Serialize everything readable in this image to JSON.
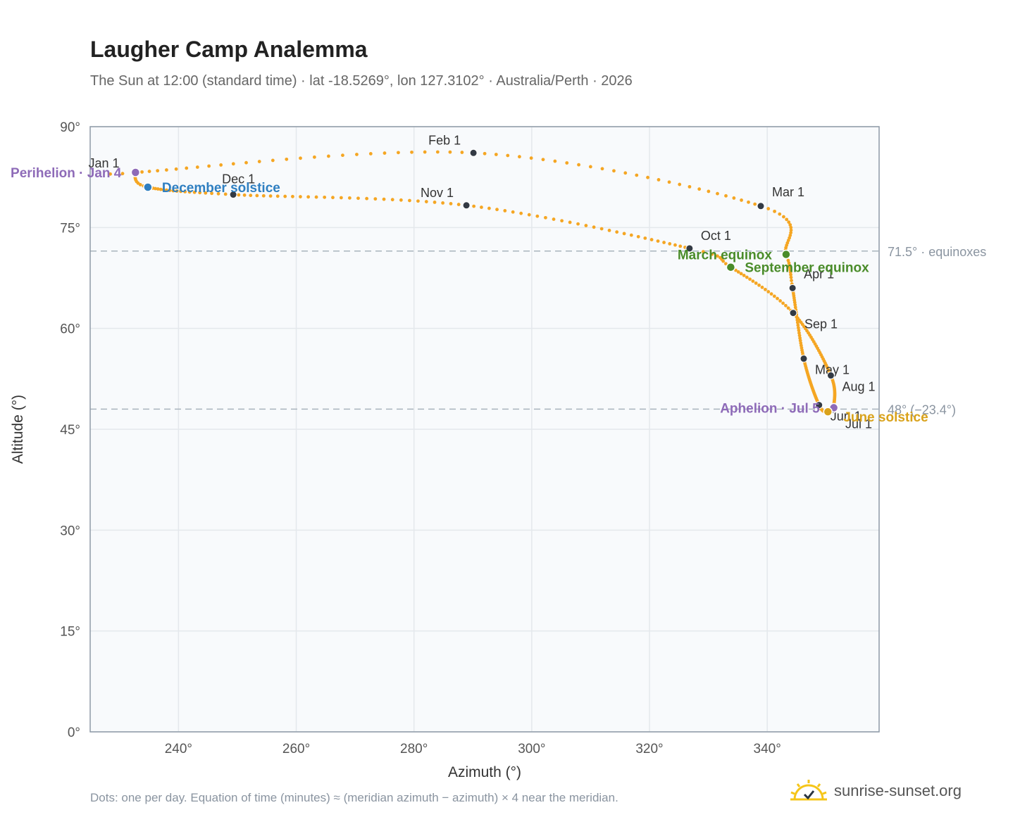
{
  "header": {
    "title": "Laugher Camp Analemma",
    "subtitle": "The Sun at 12:00 (standard time) · lat -18.5269°, lon 127.3102° · Australia/Perth · 2026"
  },
  "footer": {
    "note": "Dots: one per day. Equation of time (minutes) ≈ (meridian azimuth − azimuth) × 4 near the meridian.",
    "brand": "sunrise-sunset.org"
  },
  "colors": {
    "path": "#f5a623",
    "month_dot": "#333a44",
    "solstice_december": "#2f7fc1",
    "solstice_june": "#d9a21b",
    "equinox": "#4a8c2a",
    "apsis": "#8e6bb8",
    "reference_line": "#a9b4bd",
    "plot_bg": "#f8fafc",
    "grid": "#e4e8ec",
    "frame": "#8d99a6"
  },
  "chart_data": {
    "type": "scatter",
    "xlabel": "Azimuth (°)",
    "ylabel": "Altitude (°)",
    "xlim": [
      225,
      359
    ],
    "ylim": [
      0,
      90
    ],
    "xticks": [
      240,
      260,
      280,
      300,
      320,
      340
    ],
    "yticks": [
      0,
      15,
      30,
      45,
      60,
      75,
      90
    ],
    "xtick_labels": [
      "240°",
      "260°",
      "280°",
      "300°",
      "320°",
      "340°"
    ],
    "ytick_labels": [
      "0°",
      "15°",
      "30°",
      "45°",
      "60°",
      "75°",
      "90°"
    ],
    "grid": true,
    "marker_note": "one dot per day",
    "analemma_key_points": [
      {
        "day": 1,
        "az": 232.6,
        "alt": 83.1
      },
      {
        "day": 4,
        "az": 232.7,
        "alt": 83.2
      },
      {
        "day": 32,
        "az": 290.1,
        "alt": 86.1
      },
      {
        "day": 60,
        "az": 338.9,
        "alt": 78.2
      },
      {
        "day": 79,
        "az": 343.2,
        "alt": 71.0
      },
      {
        "day": 91,
        "az": 344.3,
        "alt": 66.0
      },
      {
        "day": 121,
        "az": 346.2,
        "alt": 55.5
      },
      {
        "day": 152,
        "az": 348.8,
        "alt": 48.6
      },
      {
        "day": 172,
        "az": 350.3,
        "alt": 47.6
      },
      {
        "day": 182,
        "az": 351.1,
        "alt": 47.9
      },
      {
        "day": 186,
        "az": 351.3,
        "alt": 48.2
      },
      {
        "day": 213,
        "az": 350.8,
        "alt": 53.0
      },
      {
        "day": 244,
        "az": 344.4,
        "alt": 62.3
      },
      {
        "day": 266,
        "az": 333.8,
        "alt": 69.1
      },
      {
        "day": 274,
        "az": 326.8,
        "alt": 71.9
      },
      {
        "day": 305,
        "az": 288.9,
        "alt": 78.3
      },
      {
        "day": 335,
        "az": 249.3,
        "alt": 79.9
      },
      {
        "day": 355,
        "az": 234.8,
        "alt": 81.0
      },
      {
        "day": 365,
        "az": 232.5,
        "alt": 83.0
      }
    ],
    "month_markers": [
      {
        "label": "Jan 1",
        "az": 232.6,
        "alt": 83.1
      },
      {
        "label": "Feb 1",
        "az": 290.1,
        "alt": 86.1
      },
      {
        "label": "Mar 1",
        "az": 338.9,
        "alt": 78.2
      },
      {
        "label": "Apr 1",
        "az": 344.3,
        "alt": 66.0
      },
      {
        "label": "May 1",
        "az": 346.2,
        "alt": 55.5
      },
      {
        "label": "Jun 1",
        "az": 348.8,
        "alt": 48.6
      },
      {
        "label": "Jul 1",
        "az": 351.1,
        "alt": 47.9
      },
      {
        "label": "Aug 1",
        "az": 350.8,
        "alt": 53.0
      },
      {
        "label": "Sep 1",
        "az": 344.4,
        "alt": 62.3
      },
      {
        "label": "Oct 1",
        "az": 326.8,
        "alt": 71.9
      },
      {
        "label": "Nov 1",
        "az": 288.9,
        "alt": 78.3
      },
      {
        "label": "Dec 1",
        "az": 249.3,
        "alt": 79.9
      }
    ],
    "events": [
      {
        "label": "Perihelion · Jan 4",
        "kind": "apsis",
        "az": 232.7,
        "alt": 83.2
      },
      {
        "label": "December solstice",
        "kind": "solstice_december",
        "az": 234.8,
        "alt": 81.0
      },
      {
        "label": "March equinox",
        "kind": "equinox",
        "az": 343.2,
        "alt": 71.0
      },
      {
        "label": "September equinox",
        "kind": "equinox",
        "az": 333.8,
        "alt": 69.1
      },
      {
        "label": "Aphelion · Jul 5",
        "kind": "apsis",
        "az": 351.3,
        "alt": 48.2
      },
      {
        "label": "June solstice",
        "kind": "solstice_june",
        "az": 350.3,
        "alt": 47.6
      }
    ],
    "reference_lines": [
      {
        "alt": 71.5,
        "label": "71.5° · equinoxes"
      },
      {
        "alt": 48.0,
        "label": "48° (−23.4°)"
      }
    ]
  }
}
